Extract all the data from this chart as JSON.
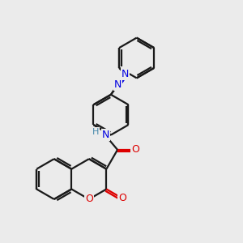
{
  "bg_color": "#ebebeb",
  "bond_color": "#1a1a1a",
  "n_color": "#0000e0",
  "o_color": "#dd0000",
  "nh_color": "#4488aa",
  "lw": 1.6,
  "dbo": 0.025,
  "figsize": [
    3.0,
    3.0
  ],
  "dpi": 100,
  "xlim": [
    0.05,
    2.95
  ],
  "ylim": [
    0.05,
    2.95
  ]
}
